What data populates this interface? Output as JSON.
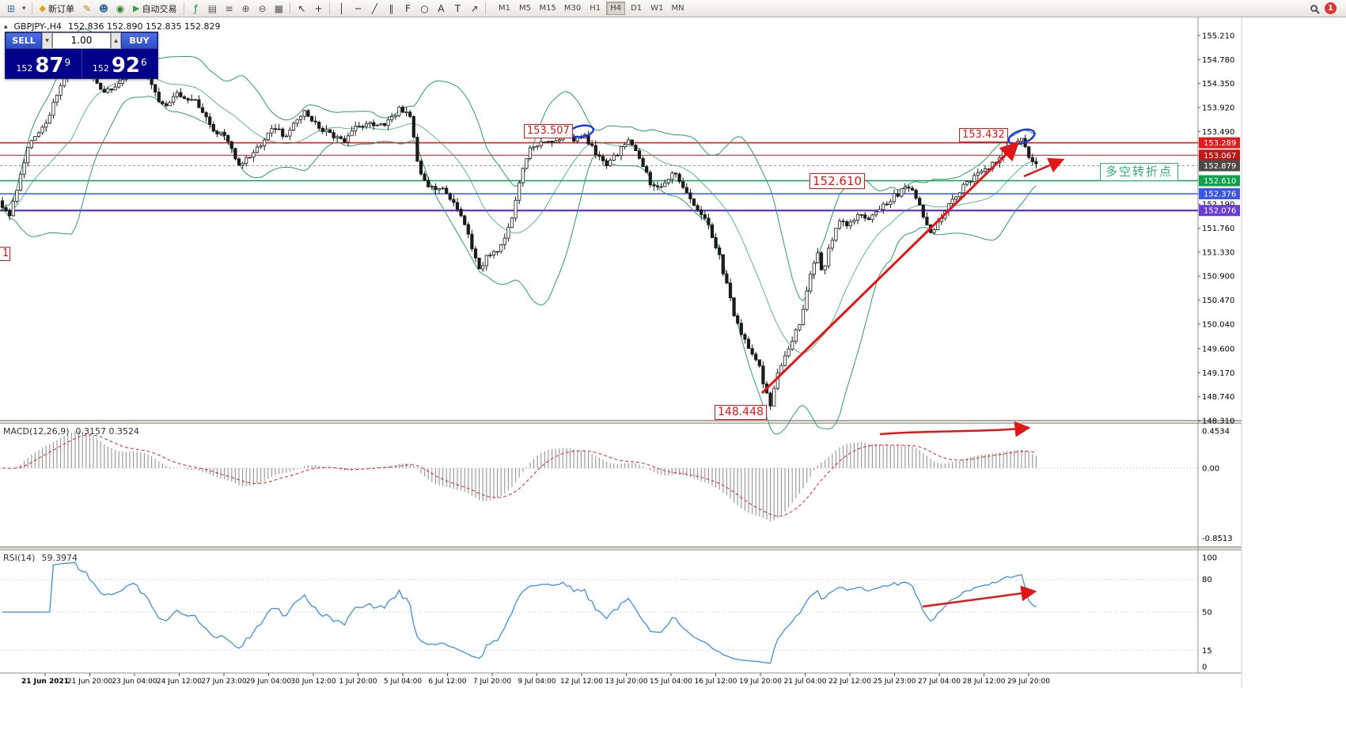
{
  "toolbar": {
    "items": [
      {
        "type": "icon",
        "name": "new-chart-icon",
        "glyph": "⊞",
        "color": "#3a6ea5"
      },
      {
        "type": "icon",
        "name": "profiles-dropdown-icon",
        "glyph": "▾",
        "color": "#555",
        "narrow": true
      },
      {
        "type": "sep"
      },
      {
        "type": "button",
        "name": "new-order-button",
        "glyph": "◆",
        "glyph_color": "#d9a520",
        "label": "新订单"
      },
      {
        "type": "icon",
        "name": "metaeditor-icon",
        "glyph": "✎",
        "color": "#b8860b"
      },
      {
        "type": "icon",
        "name": "community-icon",
        "glyph": "☻",
        "color": "#3a6ea5"
      },
      {
        "type": "icon",
        "name": "market-icon",
        "glyph": "◉",
        "color": "#2e7d32"
      },
      {
        "type": "button",
        "name": "autotrading-button",
        "glyph": "▶",
        "glyph_color": "#2ea44f",
        "label": "自动交易"
      },
      {
        "type": "sep"
      },
      {
        "type": "icon",
        "name": "indicators-icon",
        "glyph": "ƒ",
        "color": "#2e7d32"
      },
      {
        "type": "icon",
        "name": "data-window-icon",
        "glyph": "▤",
        "color": "#555"
      },
      {
        "type": "icon",
        "name": "market-depth-icon",
        "glyph": "≡",
        "color": "#555"
      },
      {
        "type": "icon",
        "name": "zoom-in-icon",
        "glyph": "⊕",
        "color": "#555"
      },
      {
        "type": "icon",
        "name": "zoom-out-icon",
        "glyph": "⊖",
        "color": "#555"
      },
      {
        "type": "icon",
        "name": "tile-windows-icon",
        "glyph": "▦",
        "color": "#555"
      },
      {
        "type": "sep"
      },
      {
        "type": "icon",
        "name": "cursor-icon",
        "glyph": "↖",
        "color": "#333"
      },
      {
        "type": "icon",
        "name": "crosshair-icon",
        "glyph": "+",
        "color": "#333"
      },
      {
        "type": "sep"
      },
      {
        "type": "icon",
        "name": "vertical-line-icon",
        "glyph": "│",
        "color": "#333"
      },
      {
        "type": "icon",
        "name": "horizontal-line-icon",
        "glyph": "─",
        "color": "#333"
      },
      {
        "type": "icon",
        "name": "trendline-icon",
        "glyph": "╱",
        "color": "#333"
      },
      {
        "type": "icon",
        "name": "channel-icon",
        "glyph": "∥",
        "color": "#333"
      },
      {
        "type": "icon",
        "name": "fibonacci-icon",
        "glyph": "F",
        "color": "#333"
      },
      {
        "type": "icon",
        "name": "shapes-icon",
        "glyph": "○",
        "color": "#333"
      },
      {
        "type": "icon",
        "name": "text-icon",
        "glyph": "A",
        "color": "#333"
      },
      {
        "type": "icon",
        "name": "label-icon",
        "glyph": "T",
        "color": "#333"
      },
      {
        "type": "icon",
        "name": "arrow-tool-icon",
        "glyph": "↗",
        "color": "#333"
      },
      {
        "type": "sep"
      }
    ],
    "timeframes": [
      "M1",
      "M5",
      "M15",
      "M30",
      "H1",
      "H4",
      "D1",
      "W1",
      "MN"
    ],
    "active_timeframe": "H4",
    "notification_badge": "1"
  },
  "chart_header": {
    "collapse_glyph": "▴",
    "symbol": "GBPJPY-,H4",
    "ohlc": "152.836 152.890 152.835 152.829"
  },
  "trade_panel": {
    "sell_label": "SELL",
    "buy_label": "BUY",
    "volume": "1.00",
    "spin_down_glyph": "▼",
    "spin_up_glyph": "▲",
    "sell_price": {
      "prefix": "152",
      "big": "87",
      "sup": "9"
    },
    "buy_price": {
      "prefix": "152",
      "big": "92",
      "sup": "6"
    }
  },
  "price_axis": {
    "labels": [
      "155.210",
      "154.780",
      "154.350",
      "153.920",
      "153.490",
      "152.190",
      "151.760",
      "151.330",
      "150.900",
      "150.470",
      "150.040",
      "149.600",
      "149.170",
      "148.740",
      "148.310"
    ],
    "tags": [
      {
        "value": "153.289",
        "color": "#e31b1b",
        "price": 153.289
      },
      {
        "value": "153.067",
        "color": "#c41414",
        "price": 153.067
      },
      {
        "value": "152.879",
        "color": "#4a4a4a",
        "price": 152.879
      },
      {
        "value": "152.610",
        "color": "#0fa04a",
        "price": 152.61
      },
      {
        "value": "152.376",
        "color": "#3a57e8",
        "price": 152.376
      },
      {
        "value": "152.076",
        "color": "#6a3bd8",
        "price": 152.076
      }
    ]
  },
  "time_axis": {
    "labels": [
      "21 Jun 2021",
      "21 Jun 20:00",
      "23 Jun 04:00",
      "24 Jun 12:00",
      "27 Jun 23:00",
      "29 Jun 04:00",
      "30 Jun 12:00",
      "1 Jul 20:00",
      "5 Jul 04:00",
      "6 Jul 12:00",
      "7 Jul 20:00",
      "9 Jul 04:00",
      "12 Jul 12:00",
      "13 Jul 20:00",
      "15 Jul 04:00",
      "16 Jul 12:00",
      "19 Jul 20:00",
      "21 Jul 04:00",
      "22 Jul 12:00",
      "25 Jul 23:00",
      "27 Jul 04:00",
      "28 Jul 12:00",
      "29 Jul 20:00"
    ]
  },
  "macd_panel": {
    "label": "MACD(12,26,9)",
    "values": "0.3157 0.3524",
    "axis": [
      "0.4534",
      "0.00",
      "-0.8513"
    ]
  },
  "rsi_panel": {
    "label": "RSI(14)",
    "value": "59.3974",
    "axis": [
      "100",
      "80",
      "50",
      "15",
      "0"
    ]
  },
  "annotations": {
    "level_high_1": "153.507",
    "level_high_2": "153.432",
    "level_mid": "152.610",
    "level_low": "148.448",
    "left_partial": "1",
    "turning_point": "多空转折点"
  },
  "chart_data": {
    "type": "candlestick",
    "symbol": "GBPJPY",
    "timeframe": "H4",
    "visible_range": {
      "price_min": 148.31,
      "price_max": 155.21,
      "time_start": "21 Jun 2021",
      "time_end": "29 Jul 20:00"
    },
    "latest_ohlc": {
      "open": 152.836,
      "high": 152.89,
      "low": 152.835,
      "close": 152.829
    },
    "bid": 152.879,
    "ask": 152.926,
    "horizontal_levels": [
      {
        "price": 153.289,
        "color": "#e31b1b",
        "width": 1.6
      },
      {
        "price": 153.067,
        "color": "#c41414",
        "width": 1
      },
      {
        "price": 152.879,
        "color": "#999999",
        "width": 1,
        "dash": "3,3"
      },
      {
        "price": 152.61,
        "color": "#0fa04a",
        "width": 1.5
      },
      {
        "price": 152.376,
        "color": "#3a57e8",
        "width": 1.5
      },
      {
        "price": 152.076,
        "color": "#6a3bd8",
        "width": 2.4
      }
    ],
    "marked_prices": {
      "swing_high_1": 153.507,
      "swing_high_2": 153.432,
      "support": 152.61,
      "swing_low": 148.448
    },
    "indicators": {
      "bollinger": {
        "period": 20,
        "deviation": 2,
        "color": "#2a9e62"
      },
      "macd": {
        "fast": 12,
        "slow": 26,
        "signal": 9,
        "values": [
          0.3157,
          0.3524
        ],
        "range": [
          -0.8513,
          0.4534
        ]
      },
      "rsi": {
        "period": 14,
        "value": 59.3974,
        "color": "#3f8fdf"
      }
    },
    "price_waypoints": [
      [
        0,
        152.25
      ],
      [
        12,
        151.95
      ],
      [
        35,
        153.2
      ],
      [
        60,
        153.7
      ],
      [
        80,
        154.45
      ],
      [
        95,
        154.85
      ],
      [
        112,
        154.6
      ],
      [
        128,
        154.2
      ],
      [
        150,
        154.35
      ],
      [
        170,
        154.75
      ],
      [
        188,
        154.45
      ],
      [
        205,
        153.95
      ],
      [
        225,
        154.15
      ],
      [
        248,
        154.0
      ],
      [
        268,
        153.55
      ],
      [
        288,
        153.35
      ],
      [
        300,
        152.9
      ],
      [
        318,
        153.05
      ],
      [
        345,
        153.55
      ],
      [
        362,
        153.4
      ],
      [
        382,
        153.85
      ],
      [
        400,
        153.6
      ],
      [
        418,
        153.45
      ],
      [
        432,
        153.3
      ],
      [
        448,
        153.55
      ],
      [
        468,
        153.6
      ],
      [
        488,
        153.65
      ],
      [
        505,
        153.9
      ],
      [
        518,
        153.8
      ],
      [
        527,
        152.95
      ],
      [
        540,
        152.45
      ],
      [
        558,
        152.5
      ],
      [
        575,
        152.2
      ],
      [
        590,
        151.7
      ],
      [
        605,
        151.0
      ],
      [
        618,
        151.3
      ],
      [
        632,
        151.4
      ],
      [
        645,
        151.8
      ],
      [
        658,
        152.7
      ],
      [
        670,
        153.15
      ],
      [
        685,
        153.3
      ],
      [
        700,
        153.25
      ],
      [
        712,
        153.45
      ],
      [
        725,
        153.3
      ],
      [
        737,
        153.45
      ],
      [
        752,
        153.1
      ],
      [
        767,
        152.85
      ],
      [
        782,
        153.15
      ],
      [
        795,
        153.35
      ],
      [
        810,
        152.95
      ],
      [
        825,
        152.45
      ],
      [
        840,
        152.6
      ],
      [
        855,
        152.75
      ],
      [
        868,
        152.35
      ],
      [
        882,
        152.05
      ],
      [
        895,
        151.85
      ],
      [
        907,
        151.35
      ],
      [
        918,
        150.75
      ],
      [
        928,
        150.2
      ],
      [
        938,
        149.85
      ],
      [
        948,
        149.6
      ],
      [
        958,
        149.35
      ],
      [
        968,
        148.8
      ],
      [
        974,
        148.6
      ],
      [
        982,
        149.15
      ],
      [
        992,
        149.5
      ],
      [
        1002,
        149.8
      ],
      [
        1012,
        150.1
      ],
      [
        1022,
        150.85
      ],
      [
        1032,
        151.35
      ],
      [
        1040,
        150.95
      ],
      [
        1050,
        151.5
      ],
      [
        1060,
        151.85
      ],
      [
        1072,
        151.8
      ],
      [
        1084,
        152.0
      ],
      [
        1096,
        151.9
      ],
      [
        1108,
        152.1
      ],
      [
        1120,
        152.2
      ],
      [
        1132,
        152.35
      ],
      [
        1144,
        152.5
      ],
      [
        1156,
        152.35
      ],
      [
        1168,
        151.95
      ],
      [
        1178,
        151.65
      ],
      [
        1192,
        152.0
      ],
      [
        1205,
        152.3
      ],
      [
        1218,
        152.5
      ],
      [
        1230,
        152.65
      ],
      [
        1242,
        152.8
      ],
      [
        1254,
        152.9
      ],
      [
        1266,
        153.1
      ],
      [
        1278,
        153.25
      ],
      [
        1290,
        153.4
      ],
      [
        1298,
        153.1
      ],
      [
        1306,
        152.95
      ],
      [
        1312,
        152.88
      ]
    ]
  }
}
